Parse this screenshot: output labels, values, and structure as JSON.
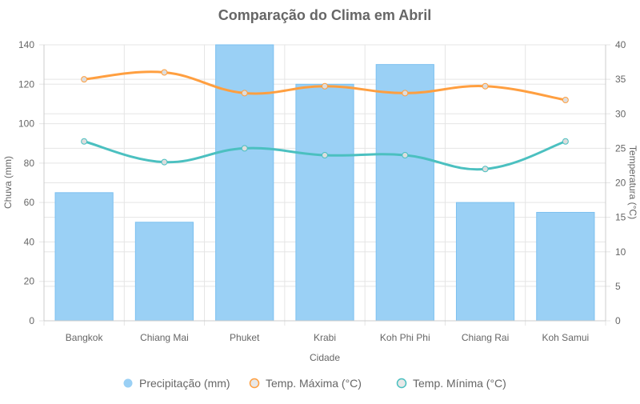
{
  "chart_data": {
    "type": "bar",
    "title": "Comparação do Clima em Abril",
    "xlabel": "Cidade",
    "ylabel_left": "Chuva (mm)",
    "ylabel_right": "Temperatura (°C)",
    "categories": [
      "Bangkok",
      "Chiang Mai",
      "Phuket",
      "Krabi",
      "Koh Phi Phi",
      "Chiang Rai",
      "Koh Samui"
    ],
    "y_left": {
      "min": 0,
      "max": 140,
      "ticks": [
        "0",
        "20",
        "40",
        "60",
        "80",
        "100",
        "120",
        "140"
      ]
    },
    "y_right": {
      "min": 0,
      "max": 40,
      "ticks": [
        "0",
        "5",
        "10",
        "15",
        "20",
        "25",
        "30",
        "35",
        "40"
      ]
    },
    "grid": true,
    "legend_position": "bottom",
    "series": [
      {
        "name": "Precipitação (mm)",
        "type": "bar",
        "axis": "left",
        "color": "#9ad0f5",
        "values": [
          65,
          50,
          140,
          120,
          130,
          60,
          55
        ]
      },
      {
        "name": "Temp. Máxima (°C)",
        "type": "line",
        "axis": "right",
        "color": "#ff9f40",
        "values": [
          35,
          36,
          33,
          34,
          33,
          34,
          32
        ]
      },
      {
        "name": "Temp. Mínima (°C)",
        "type": "line",
        "axis": "right",
        "color": "#4bc0c0",
        "values": [
          26,
          23,
          25,
          24,
          24,
          22,
          26
        ]
      }
    ]
  }
}
